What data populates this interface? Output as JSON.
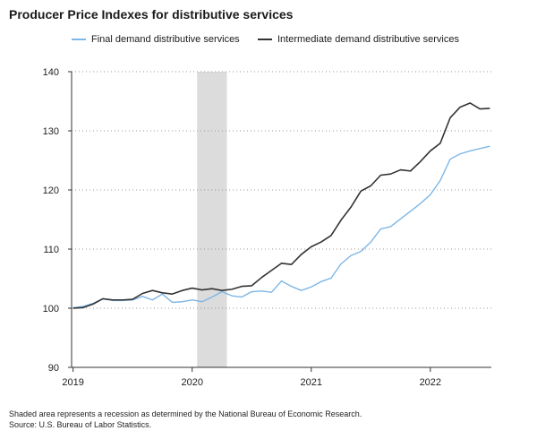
{
  "title": "Producer Price Indexes for distributive services",
  "chart_data": {
    "type": "line",
    "title": "Producer Price Indexes for distributive services",
    "xlabel": "",
    "ylabel": "",
    "ylim": [
      90,
      140
    ],
    "yticks": [
      90,
      100,
      110,
      120,
      130,
      140
    ],
    "xlim": [
      "2019-01",
      "2022-07"
    ],
    "xticks": [
      {
        "label": "2019",
        "x": "2019-01"
      },
      {
        "label": "2020",
        "x": "2020-01"
      },
      {
        "label": "2021",
        "x": "2021-01"
      },
      {
        "label": "2022",
        "x": "2022-01"
      }
    ],
    "grid": "horizontal-dotted",
    "legend_position": "top",
    "recession": {
      "start": "2020-02",
      "end": "2020-04"
    },
    "x": [
      "2019-01",
      "2019-02",
      "2019-03",
      "2019-04",
      "2019-05",
      "2019-06",
      "2019-07",
      "2019-08",
      "2019-09",
      "2019-10",
      "2019-11",
      "2019-12",
      "2020-01",
      "2020-02",
      "2020-03",
      "2020-04",
      "2020-05",
      "2020-06",
      "2020-07",
      "2020-08",
      "2020-09",
      "2020-10",
      "2020-11",
      "2020-12",
      "2021-01",
      "2021-02",
      "2021-03",
      "2021-04",
      "2021-05",
      "2021-06",
      "2021-07",
      "2021-08",
      "2021-09",
      "2021-10",
      "2021-11",
      "2021-12",
      "2022-01",
      "2022-02",
      "2022-03",
      "2022-04",
      "2022-05",
      "2022-06",
      "2022-07"
    ],
    "series": [
      {
        "name": "Final demand distributive services",
        "color": "#7eb6e6",
        "values": [
          100.1,
          100.3,
          100.8,
          101.6,
          101.3,
          101.3,
          101.4,
          102.0,
          101.4,
          102.4,
          101.0,
          101.1,
          101.4,
          101.1,
          101.9,
          102.8,
          102.1,
          101.9,
          102.8,
          102.9,
          102.7,
          104.6,
          103.7,
          103.0,
          103.6,
          104.5,
          105.1,
          107.5,
          108.9,
          109.6,
          111.2,
          113.4,
          113.8,
          115.1,
          116.4,
          117.7,
          119.2,
          121.6,
          125.2,
          126.1,
          126.6,
          127.0,
          127.4
        ]
      },
      {
        "name": "Intermediate demand distributive services",
        "color": "#333333",
        "values": [
          100.0,
          100.1,
          100.7,
          101.6,
          101.4,
          101.4,
          101.5,
          102.5,
          103.0,
          102.6,
          102.4,
          103.0,
          103.4,
          103.1,
          103.3,
          103.0,
          103.2,
          103.7,
          103.8,
          105.2,
          106.4,
          107.6,
          107.4,
          109.1,
          110.4,
          111.2,
          112.3,
          114.9,
          117.1,
          119.8,
          120.7,
          122.5,
          122.7,
          123.4,
          123.2,
          124.8,
          126.6,
          127.9,
          132.2,
          134.0,
          134.7,
          133.7,
          133.8
        ]
      }
    ]
  },
  "notes": [
    "Shaded area represents a recession as determined by the National Bureau of Economic Research.",
    "Source: U.S. Bureau of Labor Statistics."
  ]
}
